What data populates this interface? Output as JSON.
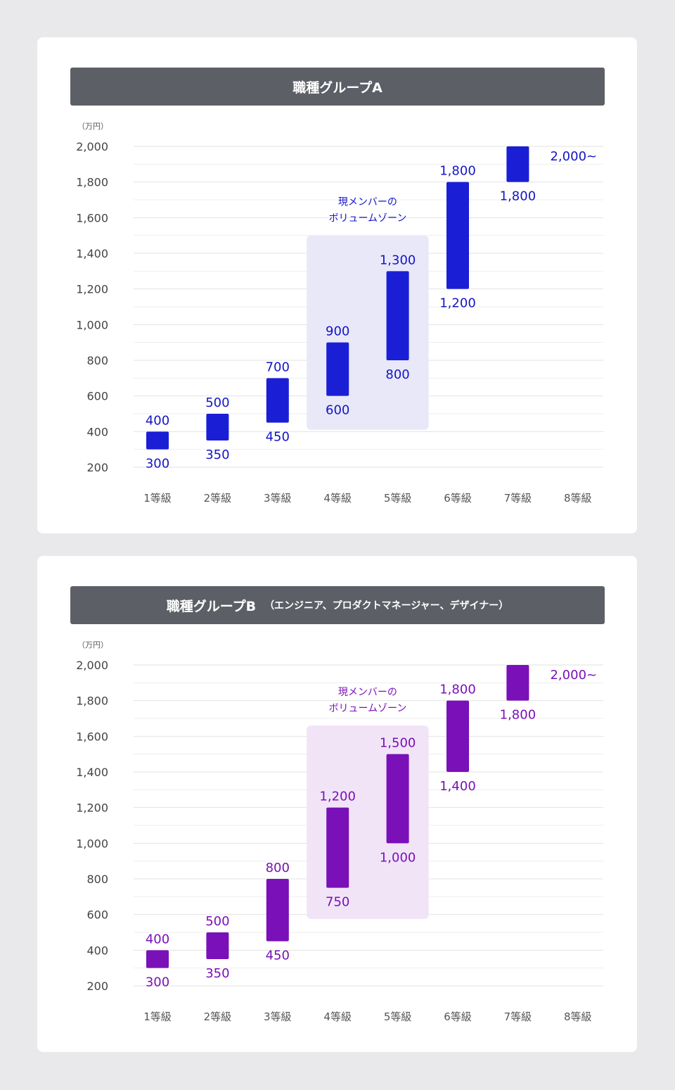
{
  "chart_data": [
    {
      "type": "range-bar",
      "title": "職種グループA",
      "subtitle": "",
      "unit_label": "（万円）",
      "ylim": [
        200,
        2000
      ],
      "yticks": [
        2000,
        1800,
        1600,
        1400,
        1200,
        1000,
        800,
        600,
        400,
        200
      ],
      "ytick_labels": [
        "2,000",
        "1,800",
        "1,600",
        "1,400",
        "1,200",
        "1,000",
        "800",
        "600",
        "400",
        "200"
      ],
      "categories": [
        "1等級",
        "2等級",
        "3等級",
        "4等級",
        "5等級",
        "6等級",
        "7等級",
        "8等級"
      ],
      "ranges": [
        [
          300,
          400
        ],
        [
          350,
          500
        ],
        [
          450,
          700
        ],
        [
          600,
          900
        ],
        [
          800,
          1300
        ],
        [
          1200,
          1800
        ],
        [
          1800,
          2000
        ],
        null
      ],
      "top_labels": [
        "400",
        "500",
        "700",
        "900",
        "1,300",
        "1,800",
        "",
        ""
      ],
      "bottom_labels": [
        "300",
        "350",
        "450",
        "600",
        "800",
        "1,200",
        "1,800",
        ""
      ],
      "open_label": "2,000~",
      "zone_label": [
        "現メンバーの",
        "ボリュームゾーン"
      ],
      "zone_categories": [
        "4等級",
        "5等級"
      ],
      "bar_color": "#1a1fd6",
      "text_color": "#1414c8",
      "zone_color": "#e8e8f8",
      "grid": true
    },
    {
      "type": "range-bar",
      "title": "職種グループB",
      "subtitle": "（エンジニア、プロダクトマネージャー、デザイナー）",
      "unit_label": "（万円）",
      "ylim": [
        200,
        2000
      ],
      "yticks": [
        2000,
        1800,
        1600,
        1400,
        1200,
        1000,
        800,
        600,
        400,
        200
      ],
      "ytick_labels": [
        "2,000",
        "1,800",
        "1,600",
        "1,400",
        "1,200",
        "1,000",
        "800",
        "600",
        "400",
        "200"
      ],
      "categories": [
        "1等級",
        "2等級",
        "3等級",
        "4等級",
        "5等級",
        "6等級",
        "7等級",
        "8等級"
      ],
      "ranges": [
        [
          300,
          400
        ],
        [
          350,
          500
        ],
        [
          450,
          800
        ],
        [
          750,
          1200
        ],
        [
          1000,
          1500
        ],
        [
          1400,
          1800
        ],
        [
          1800,
          2000
        ],
        null
      ],
      "top_labels": [
        "400",
        "500",
        "800",
        "1,200",
        "1,500",
        "1,800",
        "",
        ""
      ],
      "bottom_labels": [
        "300",
        "350",
        "450",
        "750",
        "1,000",
        "1,400",
        "1,800",
        ""
      ],
      "open_label": "2,000~",
      "zone_label": [
        "現メンバーの",
        "ボリュームゾーン"
      ],
      "zone_categories": [
        "4等級",
        "5等級"
      ],
      "bar_color": "#7a10b8",
      "text_color": "#7a10b8",
      "zone_color": "#f1e4f7",
      "grid": true
    }
  ]
}
